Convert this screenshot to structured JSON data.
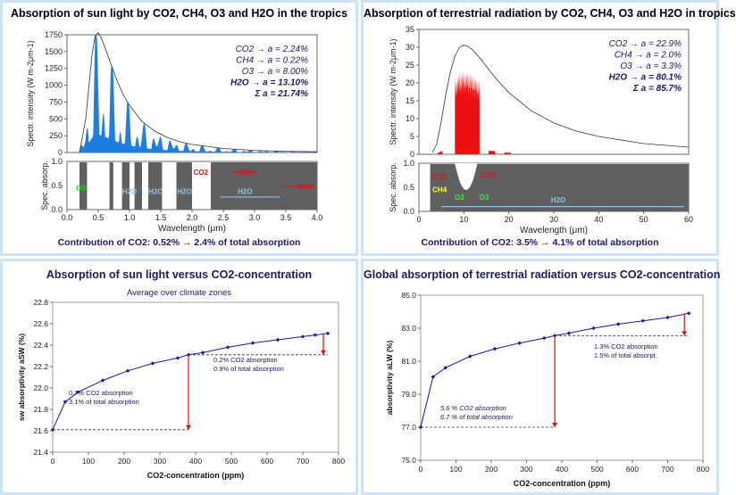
{
  "panels": {
    "sw_spectrum": {
      "title": "Absorption of sun light by CO2, CH4, O3 and H2O in the tropics",
      "contribution": "Contribution of CO2: 0.52% → 2.4% of total absorption",
      "upper_ylabel": "Spectr. intensity (W m-2μm-1)",
      "lower_ylabel": "Spec. absorp.",
      "xlabel": "Wavelength (μm)",
      "legend": [
        "CO2 → a = 2.24%",
        "CH4 → a = 0.22%",
        "O3 → a = 8.00%",
        "H2O → a = 13.10%",
        "Σ a = 21.74%"
      ],
      "band_labels": [
        "O3",
        "H2O",
        "H2O",
        "H2O",
        "CO2",
        "CO2",
        "H2O",
        "CO2"
      ]
    },
    "lw_spectrum": {
      "title": "Absorption of terrestrial radiation by CO2, CH4, O3 and H2O in tropics",
      "contribution": "Contribution of CO2: 3.5% → 4.1% of total absorption",
      "upper_ylabel": "Spectr. intensity (W m-2μm-1)",
      "lower_ylabel": "Spec. absorp.",
      "xlabel": "Wavelength (μm)",
      "legend": [
        "CO2 → a = 22.9%",
        "CH4 → a = 2.0%",
        "O3 → a = 3.3%",
        "H2O → a = 80.1%",
        "Σ a = 85.7%"
      ],
      "band_labels": [
        "CO2",
        "CH4",
        "CO2",
        "O3",
        "O3",
        "H2O"
      ]
    },
    "sw_vs_co2": {
      "title": "Absorption of sun light versus CO2-concentration",
      "subtitle": "Average over climate zones",
      "xlabel": "CO2-concentration (ppm)",
      "ylabel": "sw absorptivity aSW (%)",
      "annotation1": [
        "0.7% CO2 absorption",
        "3.1% of total absorption"
      ],
      "annotation2": [
        "0.2% CO2 absorption",
        "0.9% of total absorption"
      ]
    },
    "lw_vs_co2": {
      "title": "Global absorption of terrestrial radiation versus CO2-concentration",
      "xlabel": "CO2-concentration (ppm)",
      "ylabel": "absorptivity aLW (%)",
      "annotation1": [
        "5.6 % CO2 absorption",
        "6.7 % of total absorption"
      ],
      "annotation2": [
        "1.3% CO2 absorption",
        "1.5% of total absorpt."
      ]
    }
  },
  "chart_data": [
    {
      "type": "area",
      "title": "Absorption of sun light by CO2, CH4, O3 and H2O in the tropics",
      "xlabel": "Wavelength (μm)",
      "ylabel": "Spectr. intensity (W m-2μm-1)",
      "xlim": [
        0,
        4
      ],
      "ylim": [
        0,
        1750
      ],
      "xticks": [
        0.0,
        0.5,
        1.0,
        1.5,
        2.0,
        2.5,
        3.0,
        3.5,
        4.0
      ],
      "yticks": [
        0,
        250,
        500,
        750,
        1000,
        1250,
        1500,
        1750
      ],
      "series": [
        {
          "x": [
            0.2,
            0.3,
            0.4,
            0.45,
            0.5,
            0.55,
            0.6,
            0.7,
            0.8,
            0.9,
            1.0,
            1.2,
            1.4,
            1.6,
            1.8,
            2.0,
            2.5,
            3.0,
            3.5,
            4.0
          ],
          "values": [
            0,
            500,
            1450,
            1730,
            1780,
            1700,
            1580,
            1320,
            1070,
            860,
            700,
            460,
            320,
            225,
            160,
            120,
            60,
            32,
            18,
            11
          ]
        }
      ],
      "lower_panel": {
        "ylabel": "Spec. absorp.",
        "ylim": [
          0,
          1
        ],
        "yticks": [
          0.0,
          0.5,
          1.0
        ]
      }
    },
    {
      "type": "area",
      "title": "Absorption of terrestrial radiation by CO2, CH4, O3 and H2O in tropics",
      "xlabel": "Wavelength (μm)",
      "ylabel": "Spectr. intensity (W m-2μm-1)",
      "xlim": [
        0,
        60
      ],
      "ylim": [
        0,
        35
      ],
      "xticks": [
        0,
        10,
        20,
        30,
        40,
        50,
        60
      ],
      "yticks": [
        0,
        5,
        10,
        15,
        20,
        25,
        30,
        35
      ],
      "series": [
        {
          "x": [
            3,
            4,
            5,
            6,
            7,
            8,
            9,
            10,
            11,
            12,
            14,
            16,
            18,
            20,
            25,
            30,
            35,
            40,
            50,
            60
          ],
          "values": [
            0.5,
            3,
            9.5,
            17,
            23,
            27.5,
            30,
            30.6,
            30.2,
            29.2,
            26.3,
            23,
            20,
            17.3,
            12.2,
            8.8,
            6.5,
            5,
            3,
            2
          ]
        }
      ],
      "lower_panel": {
        "ylabel": "Spec. absorp.",
        "ylim": [
          0,
          1
        ],
        "yticks": [
          0.0,
          0.5,
          1.0
        ]
      }
    },
    {
      "type": "line",
      "title": "Absorption of sun light versus CO2-concentration",
      "subtitle": "Average over climate zones",
      "xlabel": "CO2-concentration (ppm)",
      "ylabel": "sw absorptivity aSW (%)",
      "xlim": [
        0,
        800
      ],
      "ylim": [
        21.4,
        22.8
      ],
      "xticks": [
        0,
        100,
        200,
        300,
        400,
        500,
        600,
        700,
        800
      ],
      "yticks": [
        21.4,
        21.6,
        21.8,
        22.0,
        22.2,
        22.4,
        22.6,
        22.8
      ],
      "series": [
        {
          "x": [
            0,
            35,
            70,
            140,
            210,
            280,
            350,
            380,
            420,
            490,
            560,
            630,
            700,
            735,
            770
          ],
          "values": [
            21.61,
            21.87,
            21.96,
            22.07,
            22.16,
            22.23,
            22.28,
            22.31,
            22.33,
            22.38,
            22.42,
            22.45,
            22.48,
            22.495,
            22.51
          ]
        }
      ]
    },
    {
      "type": "line",
      "title": "Global absorption of terrestrial radiation versus CO2-concentration",
      "xlabel": "CO2-concentration (ppm)",
      "ylabel": "absorptivity aLW (%)",
      "xlim": [
        0,
        800
      ],
      "ylim": [
        75,
        85
      ],
      "xticks": [
        0,
        100,
        200,
        300,
        400,
        500,
        600,
        700,
        800
      ],
      "yticks": [
        75.0,
        77.0,
        79.0,
        81.0,
        83.0,
        85.0
      ],
      "series": [
        {
          "x": [
            0,
            35,
            70,
            140,
            210,
            280,
            350,
            380,
            420,
            490,
            560,
            630,
            700,
            760
          ],
          "values": [
            77.0,
            80.05,
            80.6,
            81.3,
            81.75,
            82.1,
            82.4,
            82.55,
            82.7,
            83.0,
            83.25,
            83.45,
            83.65,
            83.9
          ]
        }
      ]
    }
  ],
  "colors": {
    "panel_border": "#cfe3f2",
    "title": "#1a1a5e",
    "sw_absorbed": "#1e7fe0",
    "lw_absorbed": "#ee1111",
    "absorption_band": "#606060",
    "line": "#1a1a8e",
    "arrow": "#dd1111"
  }
}
